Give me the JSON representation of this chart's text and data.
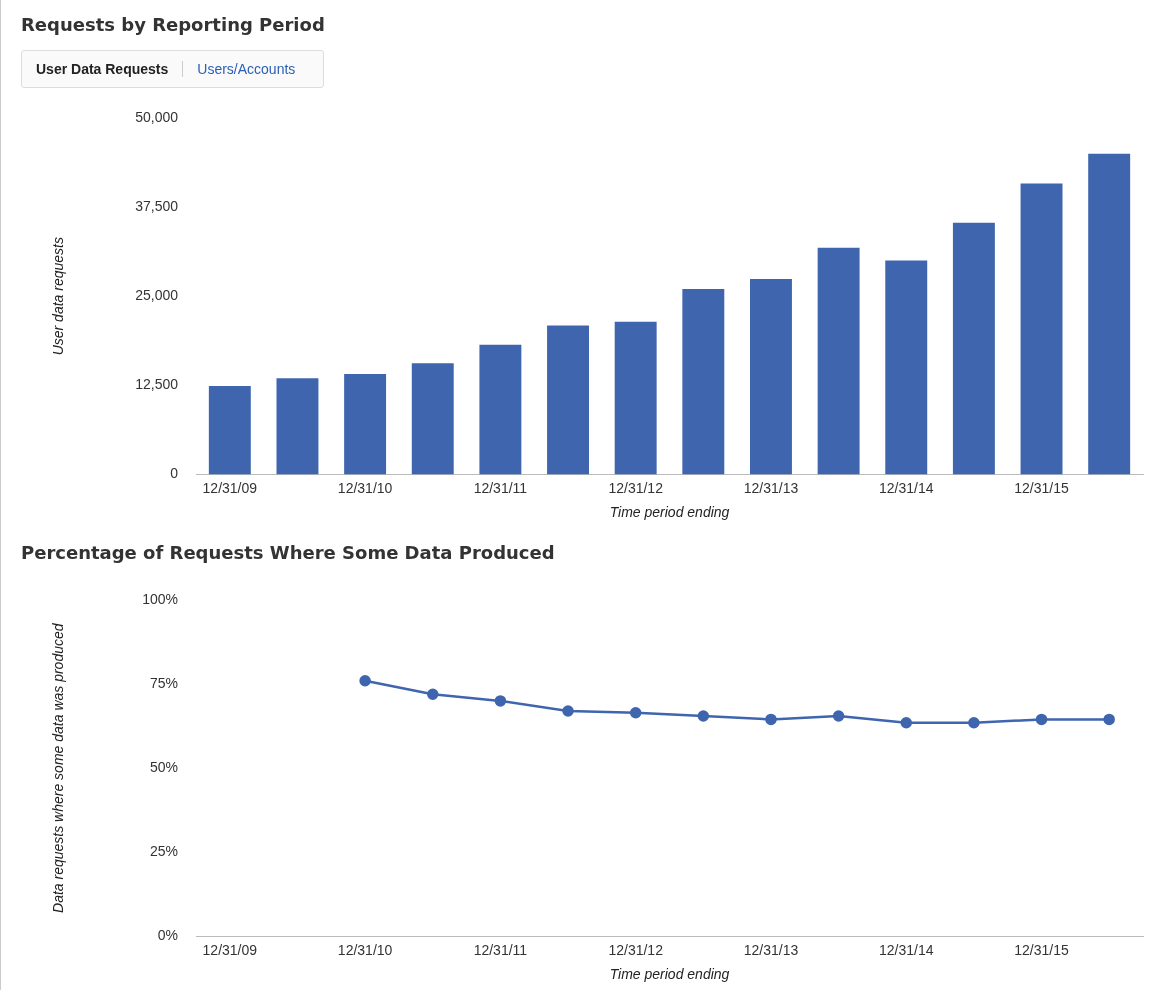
{
  "chart_data": [
    {
      "type": "bar",
      "title": "Requests by Reporting Period",
      "annotations": [
        "User Data Requests",
        "Users/Accounts"
      ],
      "xlabel": "Time period ending",
      "ylabel": "User data requests",
      "categories": [
        "12/31/09",
        null,
        "12/31/10",
        null,
        "12/31/11",
        null,
        "12/31/12",
        null,
        "12/31/13",
        null,
        "12/31/14",
        null,
        "12/31/15",
        null
      ],
      "values": [
        12400,
        13500,
        14100,
        15600,
        18200,
        20900,
        21400,
        26000,
        27400,
        31800,
        30000,
        35300,
        40800,
        45000
      ],
      "color": "#3e65ae",
      "ylim": [
        0,
        50000
      ],
      "yticks": [
        {
          "value": 0,
          "label": "0"
        },
        {
          "value": 12500,
          "label": "12,500"
        },
        {
          "value": 25000,
          "label": "25,000"
        },
        {
          "value": 37500,
          "label": "37,500"
        },
        {
          "value": 50000,
          "label": "50,000"
        }
      ],
      "grid": false,
      "legend": false
    },
    {
      "type": "line",
      "title": "Percentage of Requests Where Some Data Produced",
      "xlabel": "Time period ending",
      "ylabel": "Data requests where some data was produced",
      "categories": [
        "12/31/09",
        null,
        "12/31/10",
        null,
        "12/31/11",
        null,
        "12/31/12",
        null,
        "12/31/13",
        null,
        "12/31/14",
        null,
        "12/31/15",
        null
      ],
      "values": [
        null,
        null,
        76,
        72,
        70,
        67,
        66.5,
        65.5,
        64.5,
        65.5,
        63.5,
        63.5,
        64.5,
        64.5
      ],
      "color": "#3e65ae",
      "ylim": [
        0,
        100
      ],
      "yticks": [
        {
          "value": 0,
          "label": "0%"
        },
        {
          "value": 25,
          "label": "25%"
        },
        {
          "value": 50,
          "label": "50%"
        },
        {
          "value": 75,
          "label": "75%"
        },
        {
          "value": 100,
          "label": "100%"
        }
      ],
      "grid": false,
      "legend": false,
      "marker": "circle",
      "line_style": "solid"
    }
  ]
}
